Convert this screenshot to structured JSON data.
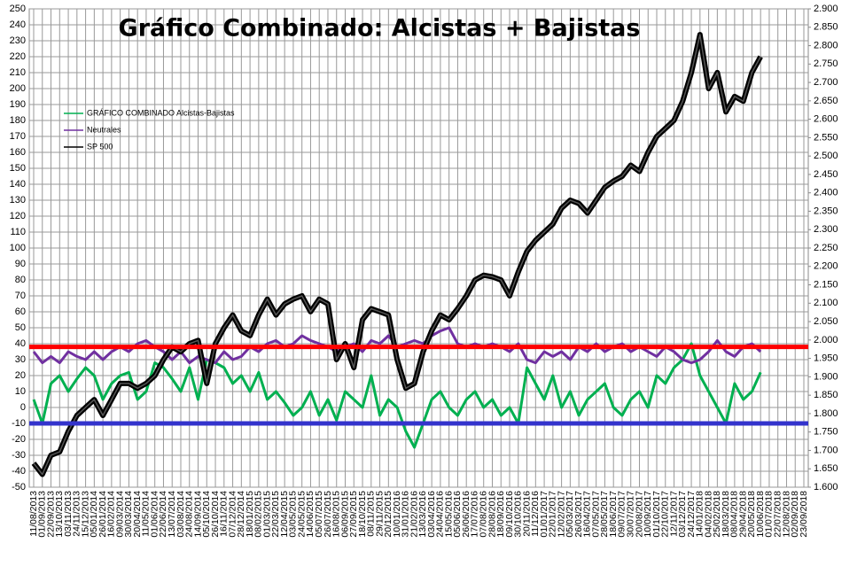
{
  "chart_data": {
    "type": "line",
    "title": "Gráfico Combinado: Alcistas + Bajistas",
    "categories": [
      "11/08/2013",
      "01/09/2013",
      "22/09/2013",
      "13/10/2013",
      "03/11/2013",
      "24/11/2013",
      "15/12/2013",
      "05/01/2014",
      "26/01/2014",
      "16/02/2014",
      "09/03/2014",
      "30/03/2014",
      "20/04/2014",
      "11/05/2014",
      "01/06/2014",
      "22/06/2014",
      "13/07/2014",
      "03/08/2014",
      "24/08/2014",
      "14/09/2014",
      "05/10/2014",
      "26/10/2014",
      "16/11/2014",
      "07/12/2014",
      "28/12/2014",
      "18/01/2015",
      "08/02/2015",
      "01/03/2015",
      "22/03/2015",
      "12/04/2015",
      "03/05/2015",
      "24/05/2015",
      "14/06/2015",
      "05/07/2015",
      "26/07/2015",
      "16/08/2015",
      "06/09/2015",
      "27/09/2015",
      "18/10/2015",
      "08/11/2015",
      "29/11/2015",
      "20/12/2015",
      "10/01/2016",
      "31/01/2016",
      "21/02/2016",
      "13/03/2016",
      "03/04/2016",
      "24/04/2016",
      "15/05/2016",
      "05/06/2016",
      "26/06/2016",
      "17/07/2016",
      "07/08/2016",
      "28/08/2016",
      "18/09/2016",
      "09/10/2016",
      "30/10/2016",
      "20/11/2016",
      "11/12/2016",
      "01/01/2017",
      "22/01/2017",
      "12/02/2017",
      "05/03/2017",
      "26/03/2017",
      "16/04/2017",
      "07/05/2017",
      "28/05/2017",
      "18/06/2017",
      "09/07/2017",
      "30/07/2017",
      "20/08/2017",
      "10/09/2017",
      "01/10/2017",
      "22/10/2017",
      "12/11/2017",
      "03/12/2017",
      "24/12/2017",
      "14/01/2018",
      "04/02/2018",
      "25/02/2018",
      "18/03/2018",
      "08/04/2018",
      "29/04/2018",
      "20/05/2018",
      "10/06/2018",
      "01/07/2018",
      "22/07/2018",
      "12/08/2018",
      "02/09/2018",
      "23/09/2018"
    ],
    "series": [
      {
        "name": "GRÁFICO COMBINADO Alcistas-Bajistas",
        "color": "#00b050",
        "values": [
          5,
          -10,
          15,
          20,
          10,
          18,
          25,
          20,
          5,
          15,
          20,
          22,
          5,
          10,
          28,
          25,
          18,
          10,
          25,
          5,
          30,
          28,
          25,
          15,
          20,
          10,
          22,
          5,
          10,
          3,
          -5,
          0,
          10,
          -5,
          5,
          -8,
          10,
          5,
          0,
          20,
          -5,
          5,
          0,
          -15,
          -25,
          -10,
          5,
          10,
          0,
          -5,
          5,
          10,
          0,
          5,
          -5,
          0,
          -10,
          25,
          15,
          5,
          20,
          0,
          10,
          -5,
          5,
          10,
          15,
          0,
          -5,
          5,
          10,
          0,
          20,
          15,
          25,
          30,
          40,
          20,
          10,
          0,
          -10,
          15,
          5,
          10,
          22,
          null,
          null,
          null,
          null,
          null
        ]
      },
      {
        "name": "Neutrales",
        "color": "#7030a0",
        "values": [
          35,
          28,
          32,
          28,
          35,
          32,
          30,
          35,
          30,
          35,
          38,
          35,
          40,
          42,
          38,
          35,
          30,
          35,
          28,
          32,
          30,
          28,
          35,
          30,
          32,
          38,
          35,
          40,
          42,
          38,
          40,
          45,
          42,
          40,
          38,
          35,
          38,
          40,
          35,
          42,
          40,
          45,
          38,
          40,
          42,
          40,
          45,
          48,
          50,
          40,
          38,
          40,
          38,
          40,
          38,
          35,
          40,
          30,
          28,
          35,
          32,
          35,
          30,
          38,
          35,
          40,
          35,
          38,
          40,
          35,
          38,
          35,
          32,
          38,
          35,
          30,
          28,
          30,
          35,
          42,
          35,
          32,
          38,
          40,
          35,
          null,
          null,
          null,
          null,
          null
        ]
      },
      {
        "name": "SP 500",
        "color": "#000000",
        "axis": "y2",
        "values": [
          1665,
          1635,
          1687,
          1696,
          1752,
          1795,
          1817,
          1838,
          1795,
          1838,
          1882,
          1882,
          1869,
          1882,
          1903,
          1947,
          1981,
          1968,
          1990,
          1999,
          1882,
          1990,
          2033,
          2068,
          2025,
          2012,
          2068,
          2111,
          2068,
          2098,
          2111,
          2120,
          2077,
          2111,
          2098,
          1947,
          1990,
          1925,
          2055,
          2085,
          2077,
          2068,
          1947,
          1869,
          1882,
          1968,
          2025,
          2068,
          2055,
          2085,
          2120,
          2163,
          2176,
          2172,
          2163,
          2120,
          2185,
          2241,
          2271,
          2293,
          2315,
          2358,
          2380,
          2371,
          2345,
          2380,
          2415,
          2432,
          2445,
          2475,
          2458,
          2510,
          2553,
          2575,
          2597,
          2649,
          2727,
          2830,
          2683,
          2727,
          2620,
          2662,
          2649,
          2727,
          2770,
          null,
          null,
          null,
          null,
          null
        ]
      }
    ],
    "reference_lines": [
      {
        "value": 38,
        "color": "#ff0000"
      },
      {
        "value": -10,
        "color": "#3333cc"
      }
    ],
    "ylim": [
      -50,
      250
    ],
    "yticks": [
      -50,
      -40,
      -30,
      -20,
      -10,
      0,
      10,
      20,
      30,
      40,
      50,
      60,
      70,
      80,
      90,
      100,
      110,
      120,
      130,
      140,
      150,
      160,
      170,
      180,
      190,
      200,
      210,
      220,
      230,
      240,
      250
    ],
    "y2lim": [
      1600,
      2900
    ],
    "y2ticks": [
      {
        "value": 1600,
        "label": "1.600"
      },
      {
        "value": 1650,
        "label": "1.650"
      },
      {
        "value": 1700,
        "label": "1.700"
      },
      {
        "value": 1750,
        "label": "1.750"
      },
      {
        "value": 1800,
        "label": "1.800"
      },
      {
        "value": 1850,
        "label": "1.850"
      },
      {
        "value": 1900,
        "label": "1.900"
      },
      {
        "value": 1950,
        "label": "1.950"
      },
      {
        "value": 2000,
        "label": "2.000"
      },
      {
        "value": 2050,
        "label": "2.050"
      },
      {
        "value": 2100,
        "label": "2.100"
      },
      {
        "value": 2150,
        "label": "2.150"
      },
      {
        "value": 2200,
        "label": "2.200"
      },
      {
        "value": 2250,
        "label": "2.250"
      },
      {
        "value": 2300,
        "label": "2.300"
      },
      {
        "value": 2350,
        "label": "2.350"
      },
      {
        "value": 2400,
        "label": "2.400"
      },
      {
        "value": 2450,
        "label": "2.450"
      },
      {
        "value": 2500,
        "label": "2.500"
      },
      {
        "value": 2550,
        "label": "2.550"
      },
      {
        "value": 2600,
        "label": "2.600"
      },
      {
        "value": 2650,
        "label": "2.650"
      },
      {
        "value": 2700,
        "label": "2.700"
      },
      {
        "value": 2750,
        "label": "2.750"
      },
      {
        "value": 2800,
        "label": "2.800"
      },
      {
        "value": 2850,
        "label": "2.850"
      },
      {
        "value": 2900,
        "label": "2.900"
      }
    ],
    "grid": true,
    "legend": "upper left"
  }
}
